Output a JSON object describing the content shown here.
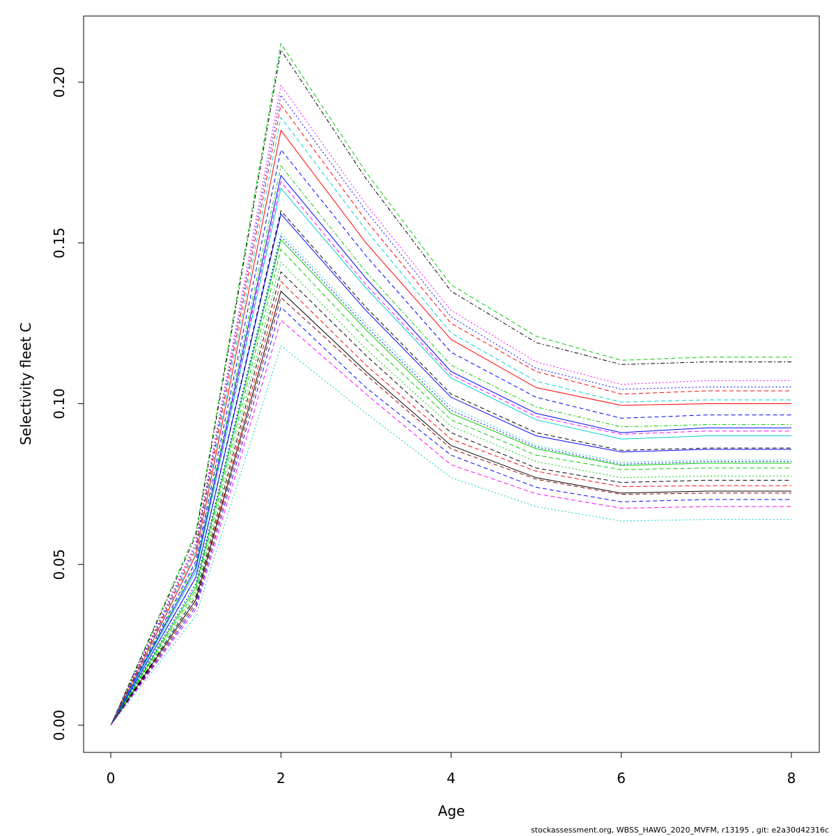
{
  "chart_data": {
    "type": "line",
    "title": "",
    "xlabel": "Age",
    "ylabel": "Selectivity fleet C",
    "x": [
      0,
      1,
      2,
      3,
      4,
      5,
      6,
      7,
      8
    ],
    "xlim": [
      0,
      8
    ],
    "ylim": [
      0.0,
      0.21
    ],
    "xticks": [
      "0",
      "2",
      "4",
      "6",
      "8"
    ],
    "yticks": [
      "0.00",
      "0.05",
      "0.10",
      "0.15",
      "0.20"
    ],
    "grid": false,
    "legend": "none",
    "series": [
      {
        "color": "#00cc00",
        "dash": "dashed",
        "values": [
          0,
          0.06,
          0.212,
          0.172,
          0.137,
          0.121,
          0.1135,
          0.1145,
          0.1145
        ]
      },
      {
        "color": "#000000",
        "dash": "dotdash",
        "values": [
          0,
          0.059,
          0.21,
          0.17,
          0.135,
          0.119,
          0.1122,
          0.113,
          0.113
        ]
      },
      {
        "color": "#ff00ff",
        "dash": "dotted",
        "values": [
          0,
          0.057,
          0.199,
          0.162,
          0.129,
          0.113,
          0.106,
          0.1072,
          0.1072
        ]
      },
      {
        "color": "#0000ff",
        "dash": "dotted",
        "values": [
          0,
          0.056,
          0.196,
          0.16,
          0.127,
          0.111,
          0.1045,
          0.1052,
          0.1052
        ]
      },
      {
        "color": "#ff0000",
        "dash": "dashed",
        "values": [
          0,
          0.055,
          0.193,
          0.157,
          0.125,
          0.11,
          0.103,
          0.104,
          0.104
        ]
      },
      {
        "color": "#00cccc",
        "dash": "dashed",
        "values": [
          0,
          0.054,
          0.189,
          0.154,
          0.122,
          0.107,
          0.1005,
          0.1012,
          0.1012
        ]
      },
      {
        "color": "#ff0000",
        "dash": "solid",
        "values": [
          0,
          0.053,
          0.185,
          0.15,
          0.12,
          0.105,
          0.0995,
          0.1,
          0.1
        ]
      },
      {
        "color": "#0000ff",
        "dash": "dashed",
        "values": [
          0,
          0.051,
          0.179,
          0.146,
          0.116,
          0.102,
          0.0955,
          0.0965,
          0.0965
        ]
      },
      {
        "color": "#00cc00",
        "dash": "dotdash",
        "values": [
          0,
          0.05,
          0.174,
          0.141,
          0.112,
          0.099,
          0.0928,
          0.0935,
          0.0935
        ]
      },
      {
        "color": "#0000ff",
        "dash": "solid",
        "values": [
          0,
          0.049,
          0.171,
          0.139,
          0.11,
          0.097,
          0.091,
          0.0925,
          0.0925
        ]
      },
      {
        "color": "#ff00ff",
        "dash": "dashed",
        "values": [
          0,
          0.048,
          0.169,
          0.137,
          0.109,
          0.096,
          0.0905,
          0.0915,
          0.0915
        ]
      },
      {
        "color": "#00cccc",
        "dash": "solid",
        "values": [
          0,
          0.048,
          0.167,
          0.136,
          0.108,
          0.095,
          0.089,
          0.09,
          0.09
        ]
      },
      {
        "color": "#000000",
        "dash": "dashed",
        "values": [
          0,
          0.046,
          0.16,
          0.13,
          0.103,
          0.091,
          0.0855,
          0.0862,
          0.0862
        ]
      },
      {
        "color": "#0000ff",
        "dash": "solid",
        "values": [
          0,
          0.046,
          0.159,
          0.129,
          0.102,
          0.09,
          0.085,
          0.0858,
          0.0858
        ]
      },
      {
        "color": "#00cccc",
        "dash": "dotted",
        "values": [
          0,
          0.044,
          0.153,
          0.125,
          0.099,
          0.087,
          0.0818,
          0.0825,
          0.0825
        ]
      },
      {
        "color": "#0000ff",
        "dash": "dotted",
        "values": [
          0,
          0.044,
          0.152,
          0.124,
          0.098,
          0.0865,
          0.0812,
          0.082,
          0.082
        ]
      },
      {
        "color": "#00cc00",
        "dash": "solid",
        "values": [
          0,
          0.043,
          0.151,
          0.123,
          0.097,
          0.086,
          0.0808,
          0.0815,
          0.0815
        ]
      },
      {
        "color": "#00cc00",
        "dash": "dashed",
        "values": [
          0,
          0.042,
          0.148,
          0.12,
          0.095,
          0.084,
          0.0795,
          0.08,
          0.08
        ]
      },
      {
        "color": "#00cc00",
        "dash": "dotted",
        "values": [
          0,
          0.041,
          0.144,
          0.117,
          0.093,
          0.082,
          0.077,
          0.0775,
          0.0775
        ]
      },
      {
        "color": "#000000",
        "dash": "dashed",
        "values": [
          0,
          0.04,
          0.141,
          0.115,
          0.091,
          0.08,
          0.0755,
          0.0762,
          0.0762
        ]
      },
      {
        "color": "#ff0000",
        "dash": "dashed",
        "values": [
          0,
          0.039,
          0.138,
          0.112,
          0.089,
          0.079,
          0.0742,
          0.0745,
          0.0745
        ]
      },
      {
        "color": "#000000",
        "dash": "solid",
        "values": [
          0,
          0.039,
          0.135,
          0.11,
          0.087,
          0.077,
          0.0722,
          0.0728,
          0.0728
        ]
      },
      {
        "color": "#8b0000",
        "dash": "dashed",
        "values": [
          0,
          0.038,
          0.133,
          0.109,
          0.086,
          0.0765,
          0.0718,
          0.0722,
          0.0722
        ]
      },
      {
        "color": "#0000ff",
        "dash": "dashed",
        "values": [
          0,
          0.037,
          0.13,
          0.105,
          0.084,
          0.074,
          0.0695,
          0.0702,
          0.0702
        ]
      },
      {
        "color": "#ff00ff",
        "dash": "dashed",
        "values": [
          0,
          0.036,
          0.126,
          0.103,
          0.081,
          0.072,
          0.0675,
          0.068,
          0.068
        ]
      },
      {
        "color": "#00cccc",
        "dash": "dotted",
        "values": [
          0,
          0.034,
          0.118,
          0.097,
          0.077,
          0.068,
          0.0635,
          0.064,
          0.064
        ]
      }
    ]
  },
  "footer": {
    "text": "stockassessment.org, WBSS_HAWG_2020_MVFM, r13195 , git: e2a30d42316c"
  }
}
